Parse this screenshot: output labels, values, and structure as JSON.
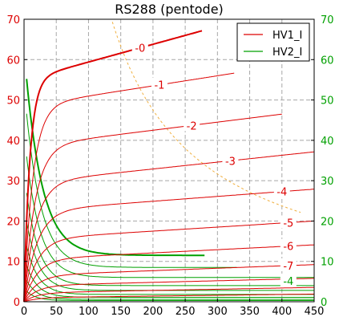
{
  "chart_data": {
    "type": "line",
    "title": "RS288 (pentode)",
    "xlabel": "",
    "ylabel": "",
    "y2label": "",
    "xlim": [
      0,
      450
    ],
    "ylim": [
      0,
      70
    ],
    "y2lim": [
      0,
      70
    ],
    "grid": true,
    "x_ticks": [
      0,
      50,
      100,
      150,
      200,
      250,
      300,
      350,
      400,
      450
    ],
    "y_ticks": [
      0,
      10,
      20,
      30,
      40,
      50,
      60,
      70
    ],
    "y2_ticks": [
      0,
      10,
      20,
      30,
      40,
      50,
      60,
      70
    ],
    "legend": {
      "placement": "top-right",
      "entries": [
        {
          "name": "HV1_I",
          "color": "#dd0000"
        },
        {
          "name": "HV2_I",
          "color": "#00a000"
        }
      ]
    },
    "colors": {
      "hv1": "#dd0000",
      "hv2": "#00a000",
      "hv2_axis": "#00a000",
      "power_limit": "#f0b040"
    },
    "hv1_series": [
      {
        "grid_voltage": "-0",
        "x_end": 277,
        "i_sat": 55.0,
        "slope": 0.044,
        "k": 9,
        "bold": true,
        "label_x": 180
      },
      {
        "grid_voltage": "-1",
        "x_end": 327,
        "i_sat": 48.5,
        "slope": 0.025,
        "k": 14,
        "bold": false,
        "label_x": 210
      },
      {
        "grid_voltage": "-2",
        "x_end": 400,
        "i_sat": 38.5,
        "slope": 0.02,
        "k": 17,
        "bold": false,
        "label_x": 260
      },
      {
        "grid_voltage": "-3",
        "x_end": 450,
        "i_sat": 29.5,
        "slope": 0.017,
        "k": 18,
        "bold": false,
        "label_x": 320
      },
      {
        "grid_voltage": "-4",
        "x_end": 450,
        "i_sat": 22.5,
        "slope": 0.012,
        "k": 20,
        "bold": false,
        "label_x": 400
      },
      {
        "grid_voltage": "-5",
        "x_end": 450,
        "i_sat": 15.5,
        "slope": 0.01,
        "k": 20,
        "bold": false,
        "label_x": 410
      },
      {
        "grid_voltage": "-6",
        "x_end": 450,
        "i_sat": 10.5,
        "slope": 0.008,
        "k": 20,
        "bold": false,
        "label_x": 410
      },
      {
        "grid_voltage": "-7",
        "x_end": 450,
        "i_sat": 6.5,
        "slope": 0.006,
        "k": 20,
        "bold": false,
        "label_x": 410
      },
      {
        "grid_voltage": "",
        "x_end": 450,
        "i_sat": 4.0,
        "slope": 0.004,
        "k": 20,
        "bold": false,
        "label_x": 0
      },
      {
        "grid_voltage": "",
        "x_end": 450,
        "i_sat": 2.2,
        "slope": 0.003,
        "k": 20,
        "bold": false,
        "label_x": 0
      },
      {
        "grid_voltage": "",
        "x_end": 450,
        "i_sat": 1.0,
        "slope": 0.002,
        "k": 20,
        "bold": false,
        "label_x": 0
      }
    ],
    "hv2_series": [
      {
        "grid_voltage": "",
        "x_end": 280,
        "i_floor": 11.5,
        "slope": 0.0,
        "amp": 51,
        "k": 26,
        "bold": true,
        "label_x": 0
      },
      {
        "grid_voltage": "",
        "x_end": 330,
        "i_floor": 8.5,
        "slope": 0.0,
        "amp": 45,
        "k": 24,
        "bold": false,
        "label_x": 0
      },
      {
        "grid_voltage": "",
        "x_end": 450,
        "i_floor": 6.0,
        "slope": 0.0,
        "amp": 36,
        "k": 22,
        "bold": false,
        "label_x": 0
      },
      {
        "grid_voltage": "-4",
        "x_end": 450,
        "i_floor": 4.0,
        "slope": 0.0,
        "amp": 28,
        "k": 20,
        "bold": false,
        "label_x": 410
      },
      {
        "grid_voltage": "",
        "x_end": 450,
        "i_floor": 2.8,
        "slope": 0.0,
        "amp": 21,
        "k": 19,
        "bold": false,
        "label_x": 0
      },
      {
        "grid_voltage": "",
        "x_end": 450,
        "i_floor": 1.8,
        "slope": 0.0,
        "amp": 15,
        "k": 18,
        "bold": false,
        "label_x": 0
      },
      {
        "grid_voltage": "",
        "x_end": 450,
        "i_floor": 1.1,
        "slope": 0.0,
        "amp": 10,
        "k": 17,
        "bold": false,
        "label_x": 0
      },
      {
        "grid_voltage": "",
        "x_end": 450,
        "i_floor": 0.6,
        "slope": 0.0,
        "amp": 6,
        "k": 16,
        "bold": false,
        "label_x": 0
      },
      {
        "grid_voltage": "",
        "x_end": 450,
        "i_floor": 0.3,
        "slope": 0.0,
        "amp": 3,
        "k": 15,
        "bold": false,
        "label_x": 0
      }
    ],
    "power_limit_curve": {
      "watts": 9.5,
      "x_start": 135,
      "x_end": 430,
      "style": "dashed"
    }
  }
}
